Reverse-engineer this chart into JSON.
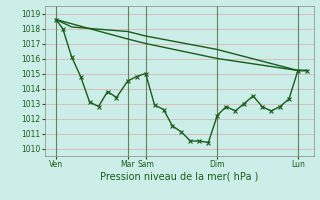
{
  "xlabel": "Pression niveau de la mer( hPa )",
  "bg_color": "#cceee8",
  "grid_color": "#ddaaaa",
  "line_color": "#1a5c1a",
  "vline_color": "#336633",
  "ylim": [
    1009.5,
    1019.5
  ],
  "yticks": [
    1010,
    1011,
    1012,
    1013,
    1014,
    1015,
    1016,
    1017,
    1018,
    1019
  ],
  "xlim": [
    0,
    120
  ],
  "xtick_positions": [
    5,
    37,
    45,
    77,
    113
  ],
  "xtick_labels": [
    "Ven",
    "Mar",
    "Sam",
    "Dim",
    "Lun"
  ],
  "vline_positions": [
    5,
    37,
    45,
    77,
    113
  ],
  "line_main_x": [
    5,
    8,
    12,
    16,
    20,
    24,
    28,
    32,
    37,
    41,
    45,
    49,
    53,
    57,
    61,
    65,
    69,
    73,
    77,
    81,
    85,
    89,
    93,
    97,
    101,
    105,
    109,
    113,
    117
  ],
  "line_main_y": [
    1018.6,
    1018.0,
    1016.1,
    1014.8,
    1013.1,
    1012.8,
    1013.8,
    1013.4,
    1014.5,
    1014.8,
    1015.0,
    1012.9,
    1012.6,
    1011.5,
    1011.1,
    1010.5,
    1010.5,
    1010.4,
    1012.2,
    1012.8,
    1012.5,
    1013.0,
    1013.5,
    1012.8,
    1012.5,
    1012.8,
    1013.3,
    1015.2,
    1015.2
  ],
  "line_upper_x": [
    5,
    37,
    45,
    77,
    113,
    117
  ],
  "line_upper_y": [
    1018.6,
    1017.3,
    1017.0,
    1016.0,
    1015.2,
    1015.2
  ],
  "line_mid_x": [
    5,
    12,
    37,
    45,
    77,
    113,
    117
  ],
  "line_mid_y": [
    1018.6,
    1018.1,
    1017.8,
    1017.5,
    1016.6,
    1015.2,
    1015.2
  ]
}
